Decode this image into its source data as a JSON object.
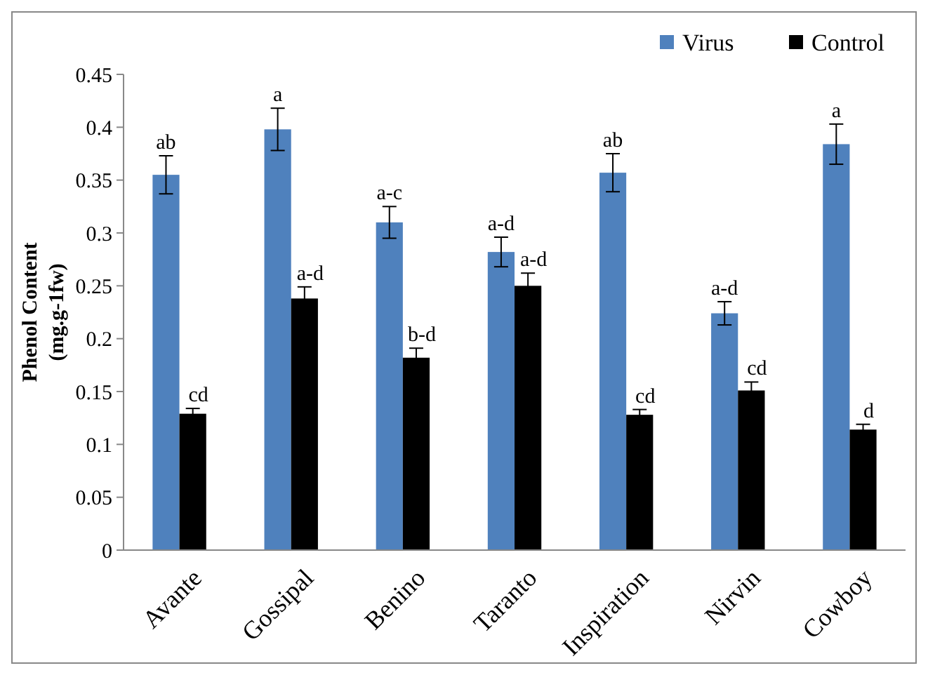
{
  "chart_data": {
    "type": "bar",
    "ylabel": "Phenol Content\n(mg.g-1fw)",
    "categories": [
      "Avante",
      "Gossipal",
      "Benino",
      "Taranto",
      "Inspiration",
      "Nirvin",
      "Cowboy"
    ],
    "series": [
      {
        "name": "Virus",
        "color": "#4f81bd",
        "values": [
          0.355,
          0.398,
          0.31,
          0.282,
          0.357,
          0.224,
          0.384
        ],
        "errors": [
          0.018,
          0.02,
          0.015,
          0.014,
          0.018,
          0.011,
          0.019
        ],
        "value_labels": [
          "ab",
          "a",
          "a-c",
          "a-d",
          "ab",
          "a-d",
          "a"
        ]
      },
      {
        "name": "Control",
        "color": "#000000",
        "values": [
          0.129,
          0.238,
          0.182,
          0.25,
          0.128,
          0.151,
          0.114
        ],
        "errors": [
          0.005,
          0.011,
          0.009,
          0.012,
          0.005,
          0.008,
          0.005
        ],
        "value_labels": [
          "cd",
          "a-d",
          "b-d",
          "a-d",
          "cd",
          "cd",
          "d"
        ]
      }
    ],
    "ylim": [
      0,
      0.45
    ],
    "yticks": [
      0,
      0.05,
      0.1,
      0.15,
      0.2,
      0.25,
      0.3,
      0.35,
      0.4,
      0.45
    ],
    "grid": false,
    "legend": "top right"
  }
}
